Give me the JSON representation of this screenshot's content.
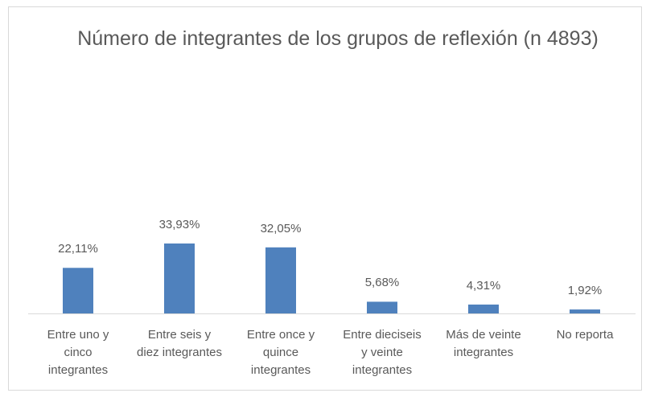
{
  "chart_data": {
    "type": "bar",
    "title": "Número de integrantes de los grupos de reflexión (n 4893)",
    "categories": [
      "Entre uno y cinco integrantes",
      "Entre seis y diez integrantes",
      "Entre once y quince integrantes",
      "Entre dieciseis y veinte integrantes",
      "Más de veinte integrantes",
      "No reporta"
    ],
    "values": [
      22.11,
      33.93,
      32.05,
      5.68,
      4.31,
      1.92
    ],
    "value_labels": [
      "22,11%",
      "33,93%",
      "32,05%",
      "5,68%",
      "4,31%",
      "1,92%"
    ],
    "color": "#4f81bd"
  }
}
